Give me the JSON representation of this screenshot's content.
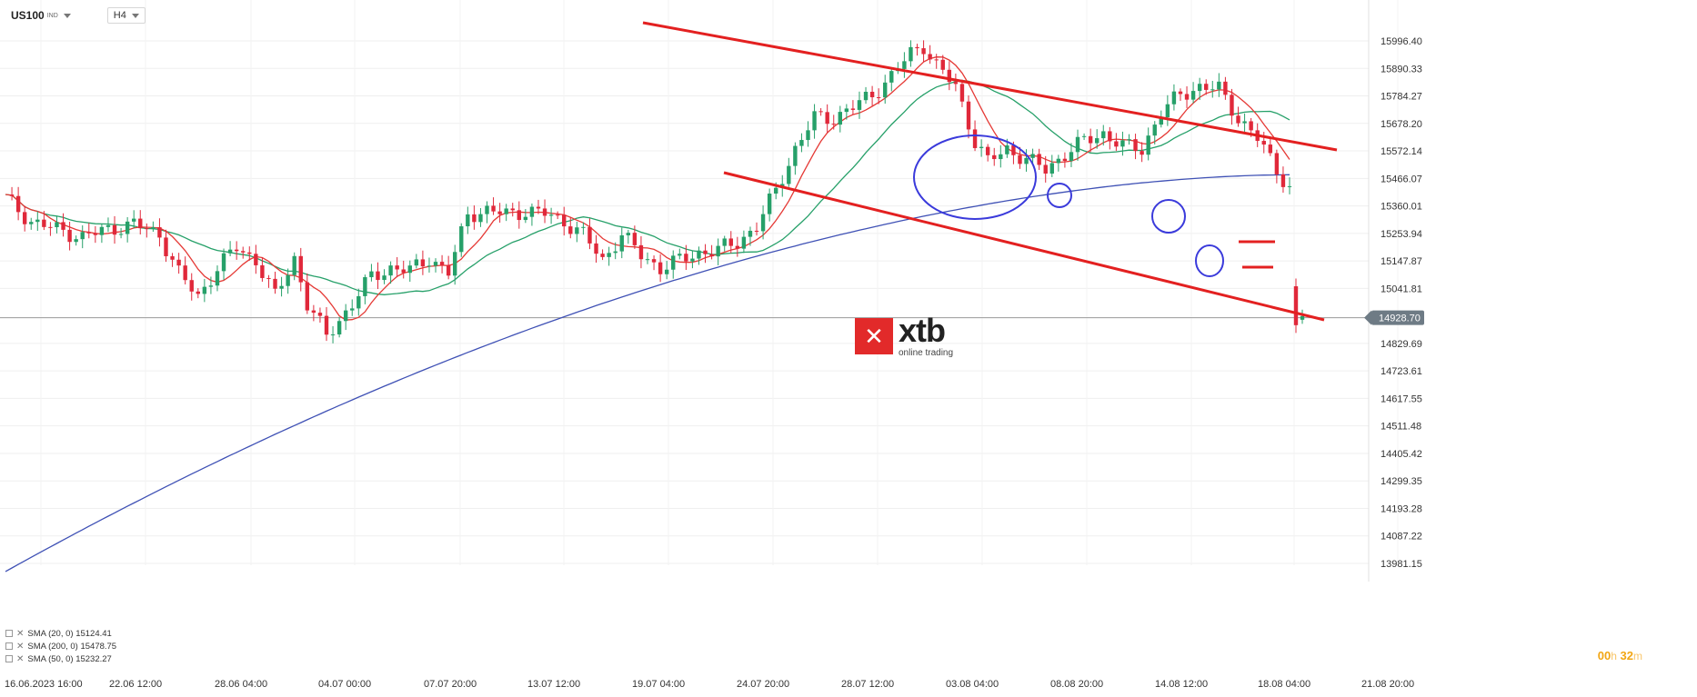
{
  "header": {
    "symbol": "US100",
    "exchange": "IND",
    "timeframe": "H4"
  },
  "logo": {
    "word": "xtb",
    "tagline": "online trading"
  },
  "indicators": [
    {
      "label": "SMA (20, 0) 15124.41",
      "color": "#e53935"
    },
    {
      "label": "SMA (200, 0) 15478.75",
      "color": "#3f51b5"
    },
    {
      "label": "SMA (50, 0) 15232.27",
      "color": "#26a069"
    }
  ],
  "timer": {
    "h": "00",
    "hu": "h",
    "m": "32",
    "mu": "m"
  },
  "chart_data": {
    "type": "candlestick",
    "instrument": "US100",
    "timeframe": "H4",
    "ylim": [
      13981.15,
      16050
    ],
    "y_ticks": [
      "15996.40",
      "15890.33",
      "15784.27",
      "15678.20",
      "15572.14",
      "15466.07",
      "15360.01",
      "15253.94",
      "15147.87",
      "15041.81",
      "14829.69",
      "14723.61",
      "14617.55",
      "14511.48",
      "14405.42",
      "14299.35",
      "14193.28",
      "14087.22",
      "13981.15"
    ],
    "last_price": "14928.70",
    "last_price_value": 14928.7,
    "x_ticks": [
      "16.06.2023 16:00",
      "22.06 12:00",
      "28.06 04:00",
      "04.07 00:00",
      "07.07 20:00",
      "13.07 12:00",
      "19.07 04:00",
      "24.07 20:00",
      "28.07 12:00",
      "03.08 04:00",
      "08.08 20:00",
      "14.08 12:00",
      "18.08 04:00",
      "21.08 20:00"
    ],
    "n_bars": 221,
    "bars_shown": 200,
    "close_anchors": [
      [
        0,
        15390
      ],
      [
        4,
        15300
      ],
      [
        8,
        15270
      ],
      [
        12,
        15240
      ],
      [
        16,
        15270
      ],
      [
        20,
        15290
      ],
      [
        24,
        15250
      ],
      [
        27,
        15100
      ],
      [
        30,
        15010
      ],
      [
        33,
        15120
      ],
      [
        36,
        15200
      ],
      [
        39,
        15150
      ],
      [
        42,
        15010
      ],
      [
        45,
        15160
      ],
      [
        47,
        14980
      ],
      [
        50,
        14860
      ],
      [
        52,
        14920
      ],
      [
        54,
        14980
      ],
      [
        57,
        15090
      ],
      [
        60,
        15120
      ],
      [
        63,
        15110
      ],
      [
        66,
        15160
      ],
      [
        69,
        15100
      ],
      [
        72,
        15330
      ],
      [
        75,
        15340
      ],
      [
        78,
        15330
      ],
      [
        81,
        15340
      ],
      [
        84,
        15330
      ],
      [
        87,
        15300
      ],
      [
        90,
        15250
      ],
      [
        93,
        15150
      ],
      [
        96,
        15250
      ],
      [
        99,
        15170
      ],
      [
        102,
        15120
      ],
      [
        105,
        15150
      ],
      [
        108,
        15180
      ],
      [
        111,
        15190
      ],
      [
        114,
        15220
      ],
      [
        117,
        15280
      ],
      [
        120,
        15420
      ],
      [
        123,
        15580
      ],
      [
        126,
        15700
      ],
      [
        129,
        15700
      ],
      [
        132,
        15740
      ],
      [
        135,
        15790
      ],
      [
        138,
        15860
      ],
      [
        141,
        15950
      ],
      [
        143,
        15980
      ],
      [
        145,
        15900
      ],
      [
        148,
        15820
      ],
      [
        151,
        15610
      ],
      [
        153,
        15530
      ],
      [
        156,
        15580
      ],
      [
        159,
        15540
      ],
      [
        162,
        15500
      ],
      [
        165,
        15560
      ],
      [
        168,
        15610
      ],
      [
        171,
        15640
      ],
      [
        174,
        15590
      ],
      [
        177,
        15580
      ],
      [
        180,
        15720
      ],
      [
        183,
        15790
      ],
      [
        186,
        15820
      ],
      [
        189,
        15810
      ],
      [
        192,
        15700
      ],
      [
        195,
        15620
      ],
      [
        198,
        15500
      ],
      [
        200,
        15430
      ]
    ],
    "series": [
      {
        "name": "SMA (20, 0)",
        "value": 15124.41
      },
      {
        "name": "SMA (200, 0)",
        "value": 15478.75
      },
      {
        "name": "SMA (50, 0)",
        "value": 15232.27
      }
    ],
    "annotations": {
      "channel_upper": [
        [
          707,
          25
        ],
        [
          1470,
          165
        ]
      ],
      "channel_lower": [
        [
          796,
          190
        ],
        [
          1456,
          352
        ]
      ],
      "ellipses": [
        [
          1072,
          195,
          67,
          46
        ],
        [
          1165,
          215,
          13,
          13
        ],
        [
          1285,
          238,
          18,
          18
        ],
        [
          1330,
          287,
          15,
          17
        ]
      ],
      "dashes": [
        [
          1362,
          266,
          1402,
          266
        ],
        [
          1366,
          294,
          1400,
          294
        ]
      ]
    }
  }
}
